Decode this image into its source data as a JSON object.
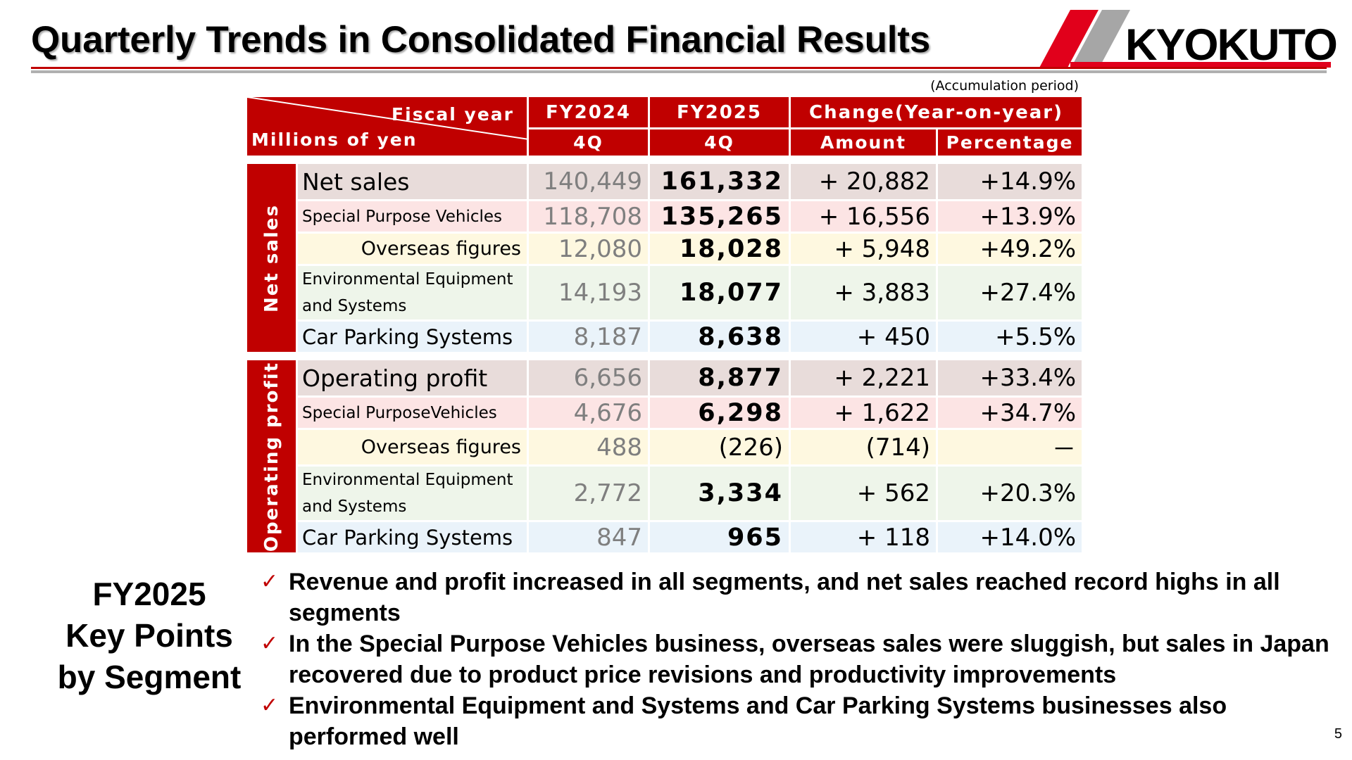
{
  "title": "Quarterly Trends in Consolidated Financial Results",
  "logo": {
    "text": "KYOKUTO",
    "colors": {
      "red": "#e1001b",
      "gray": "#a6a6a6"
    }
  },
  "table": {
    "period_note": "(Accumulation period)",
    "corner_top": "Fiscal year",
    "corner_bottom": "Millions of yen",
    "columns": {
      "fy2024": "FY2024",
      "fy2025": "FY2025",
      "change": "Change(Year-on-year)",
      "q_prev": "4Q",
      "q_cur": "4Q",
      "amount": "Amount",
      "percentage": "Percentage"
    },
    "groups": [
      {
        "label": "Net sales",
        "rows": [
          {
            "label": "Net sales",
            "prev": "140,449",
            "cur": "161,332",
            "amount": "+ 20,882",
            "pct": "+14.9%"
          },
          {
            "label": "Special Purpose Vehicles",
            "prev": "118,708",
            "cur": "135,265",
            "amount": "+ 16,556",
            "pct": "+13.9%"
          },
          {
            "label": "Overseas figures",
            "prev": "12,080",
            "cur": "18,028",
            "amount": "+ 5,948",
            "pct": "+49.2%"
          },
          {
            "label_line1": "Environmental Equipment",
            "label_line2": "and Systems",
            "prev": "14,193",
            "cur": "18,077",
            "amount": "+ 3,883",
            "pct": "+27.4%"
          },
          {
            "label": "Car Parking Systems",
            "prev": "8,187",
            "cur": "8,638",
            "amount": "+ 450",
            "pct": "+5.5%"
          }
        ]
      },
      {
        "label": "Operating profit",
        "rows": [
          {
            "label": "Operating profit",
            "prev": "6,656",
            "cur": "8,877",
            "amount": "+ 2,221",
            "pct": "+33.4%"
          },
          {
            "label": "Special PurposeVehicles",
            "prev": "4,676",
            "cur": "6,298",
            "amount": "+ 1,622",
            "pct": "+34.7%"
          },
          {
            "label": "Overseas figures",
            "prev": "488",
            "cur": "(226)",
            "amount": "(714)",
            "pct": "－"
          },
          {
            "label_line1": "Environmental Equipment",
            "label_line2": "and Systems",
            "prev": "2,772",
            "cur": "3,334",
            "amount": "+ 562",
            "pct": "+20.3%"
          },
          {
            "label": "Car Parking Systems",
            "prev": "847",
            "cur": "965",
            "amount": "+ 118",
            "pct": "+14.0%"
          }
        ]
      }
    ]
  },
  "key_points": {
    "title_line1": "FY2025",
    "title_line2": "Key Points",
    "title_line3": "by Segment",
    "bullet_glyph": "✓",
    "items": [
      "Revenue and profit increased in all segments, and net sales reached record highs in all segments",
      "In the Special Purpose Vehicles business, overseas sales were sluggish, but sales in Japan recovered due to product price revisions and productivity improvements",
      "Environmental Equipment and Systems and Car Parking Systems businesses also performed well"
    ]
  },
  "page_number": "5",
  "colors": {
    "accent_red": "#c00000",
    "rule_gray": "#b0b0b0"
  }
}
